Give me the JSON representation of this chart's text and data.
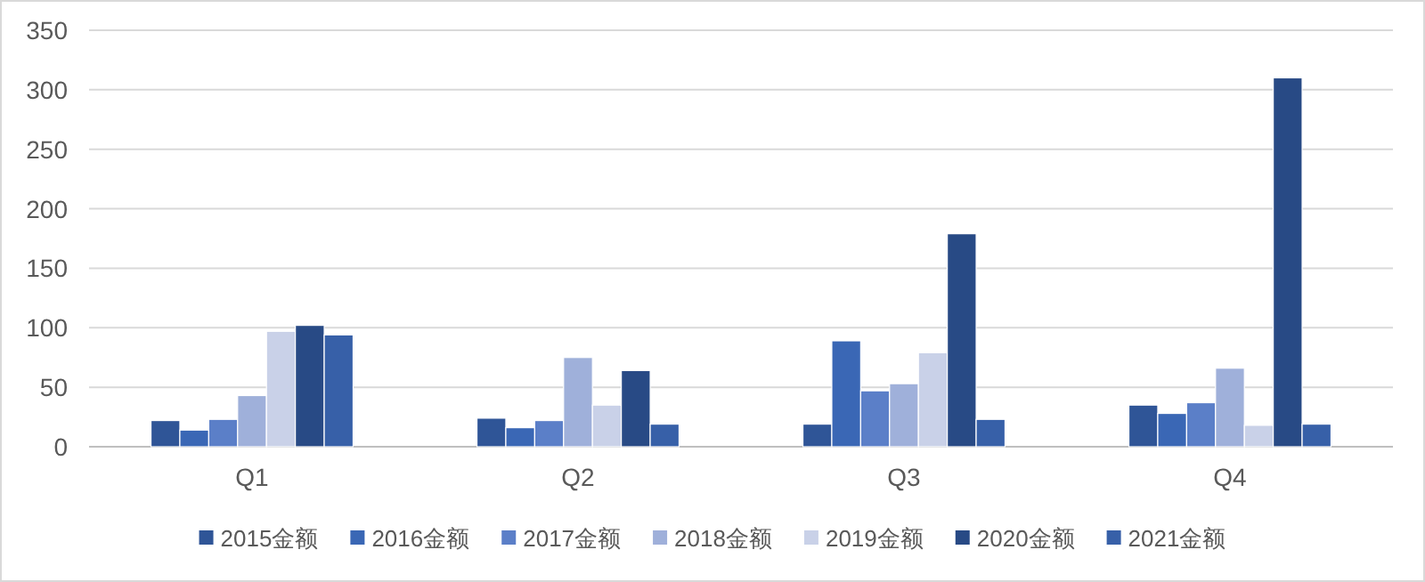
{
  "chart_data": {
    "type": "bar",
    "categories": [
      "Q1",
      "Q2",
      "Q3",
      "Q4"
    ],
    "series": [
      {
        "name": "2015金额",
        "color": "#2f5597",
        "values": [
          22,
          24,
          19,
          35
        ]
      },
      {
        "name": "2016金额",
        "color": "#3a67b5",
        "values": [
          14,
          16,
          89,
          28
        ]
      },
      {
        "name": "2017金额",
        "color": "#5b7fc8",
        "values": [
          23,
          22,
          47,
          37
        ]
      },
      {
        "name": "2018金额",
        "color": "#9fb0da",
        "values": [
          43,
          75,
          53,
          66
        ]
      },
      {
        "name": "2019金额",
        "color": "#c9d1e8",
        "values": [
          97,
          35,
          79,
          18
        ]
      },
      {
        "name": "2020金额",
        "color": "#284a85",
        "values": [
          102,
          64,
          179,
          310
        ]
      },
      {
        "name": "2021金额",
        "color": "#3760a8",
        "values": [
          94,
          19,
          23,
          19
        ]
      }
    ],
    "ylim": [
      0,
      350
    ],
    "yticks": [
      0,
      50,
      100,
      150,
      200,
      250,
      300,
      350
    ],
    "grid": "y",
    "legend": "bottom"
  }
}
